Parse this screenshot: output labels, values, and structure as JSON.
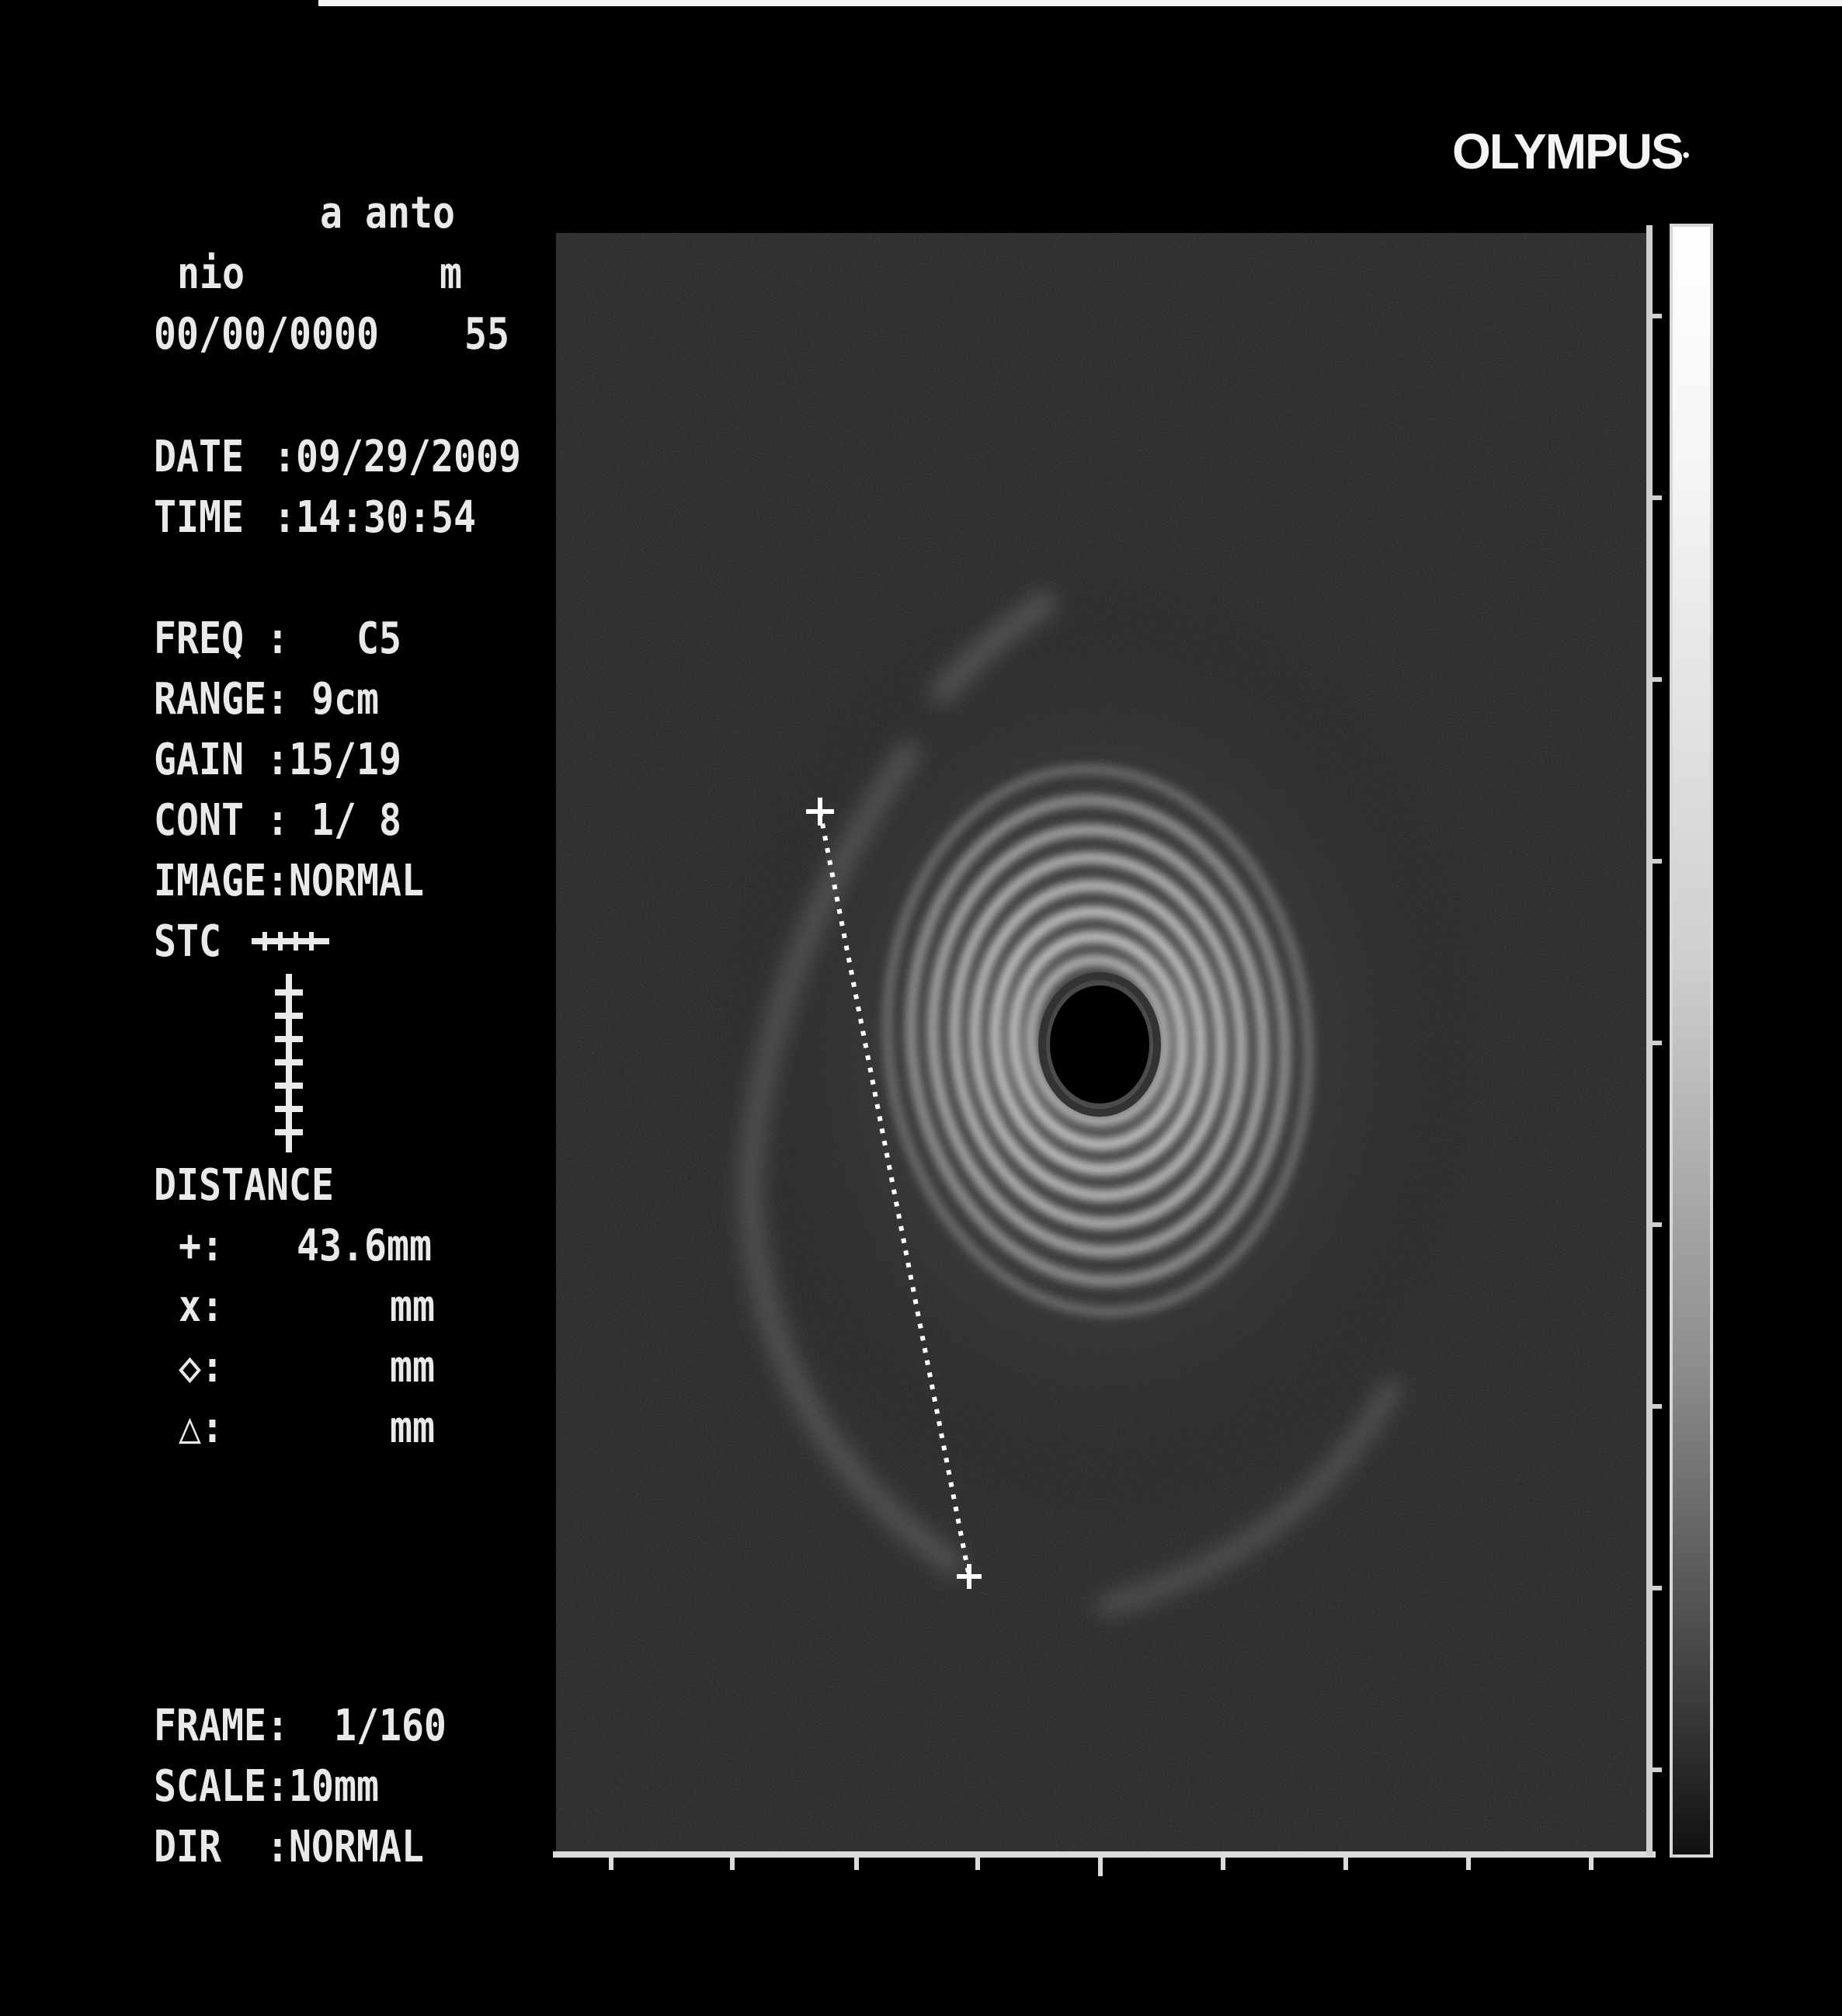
{
  "brand": {
    "logo_text": "OLYMPUS",
    "logo_mark": "•"
  },
  "patient": {
    "line1": "a anto",
    "line2_left": "nio",
    "line2_right": "m",
    "dob": "00/00/0000",
    "age": "55"
  },
  "exam": {
    "date_label": "DATE",
    "date_value": ":09/29/2009",
    "time_label": "TIME",
    "time_value": ":14:30:54"
  },
  "settings": {
    "freq": "FREQ :   C5",
    "range": "RANGE: 9cm",
    "gain": "GAIN :15/19",
    "cont": "CONT : 1/ 8",
    "image": "IMAGE:NORMAL",
    "stc": "STC"
  },
  "distance": {
    "label": "DISTANCE",
    "row1_symbol": "+:",
    "row1_value": "43.6mm",
    "row2_symbol": "x:",
    "row2_value": "mm",
    "row3_symbol": "◇:",
    "row3_value": "mm",
    "row4_symbol": "△:",
    "row4_value": "mm"
  },
  "footer": {
    "frame": "FRAME:  1/160",
    "scale": "SCALE:10mm",
    "dir": "DIR  :NORMAL"
  },
  "colors": {
    "background": "#000000",
    "text": "#e9e9e9",
    "scan_background": "#1b1b1b",
    "echo_ring": "#d8d8d8",
    "measure_line": "#ffffff"
  }
}
